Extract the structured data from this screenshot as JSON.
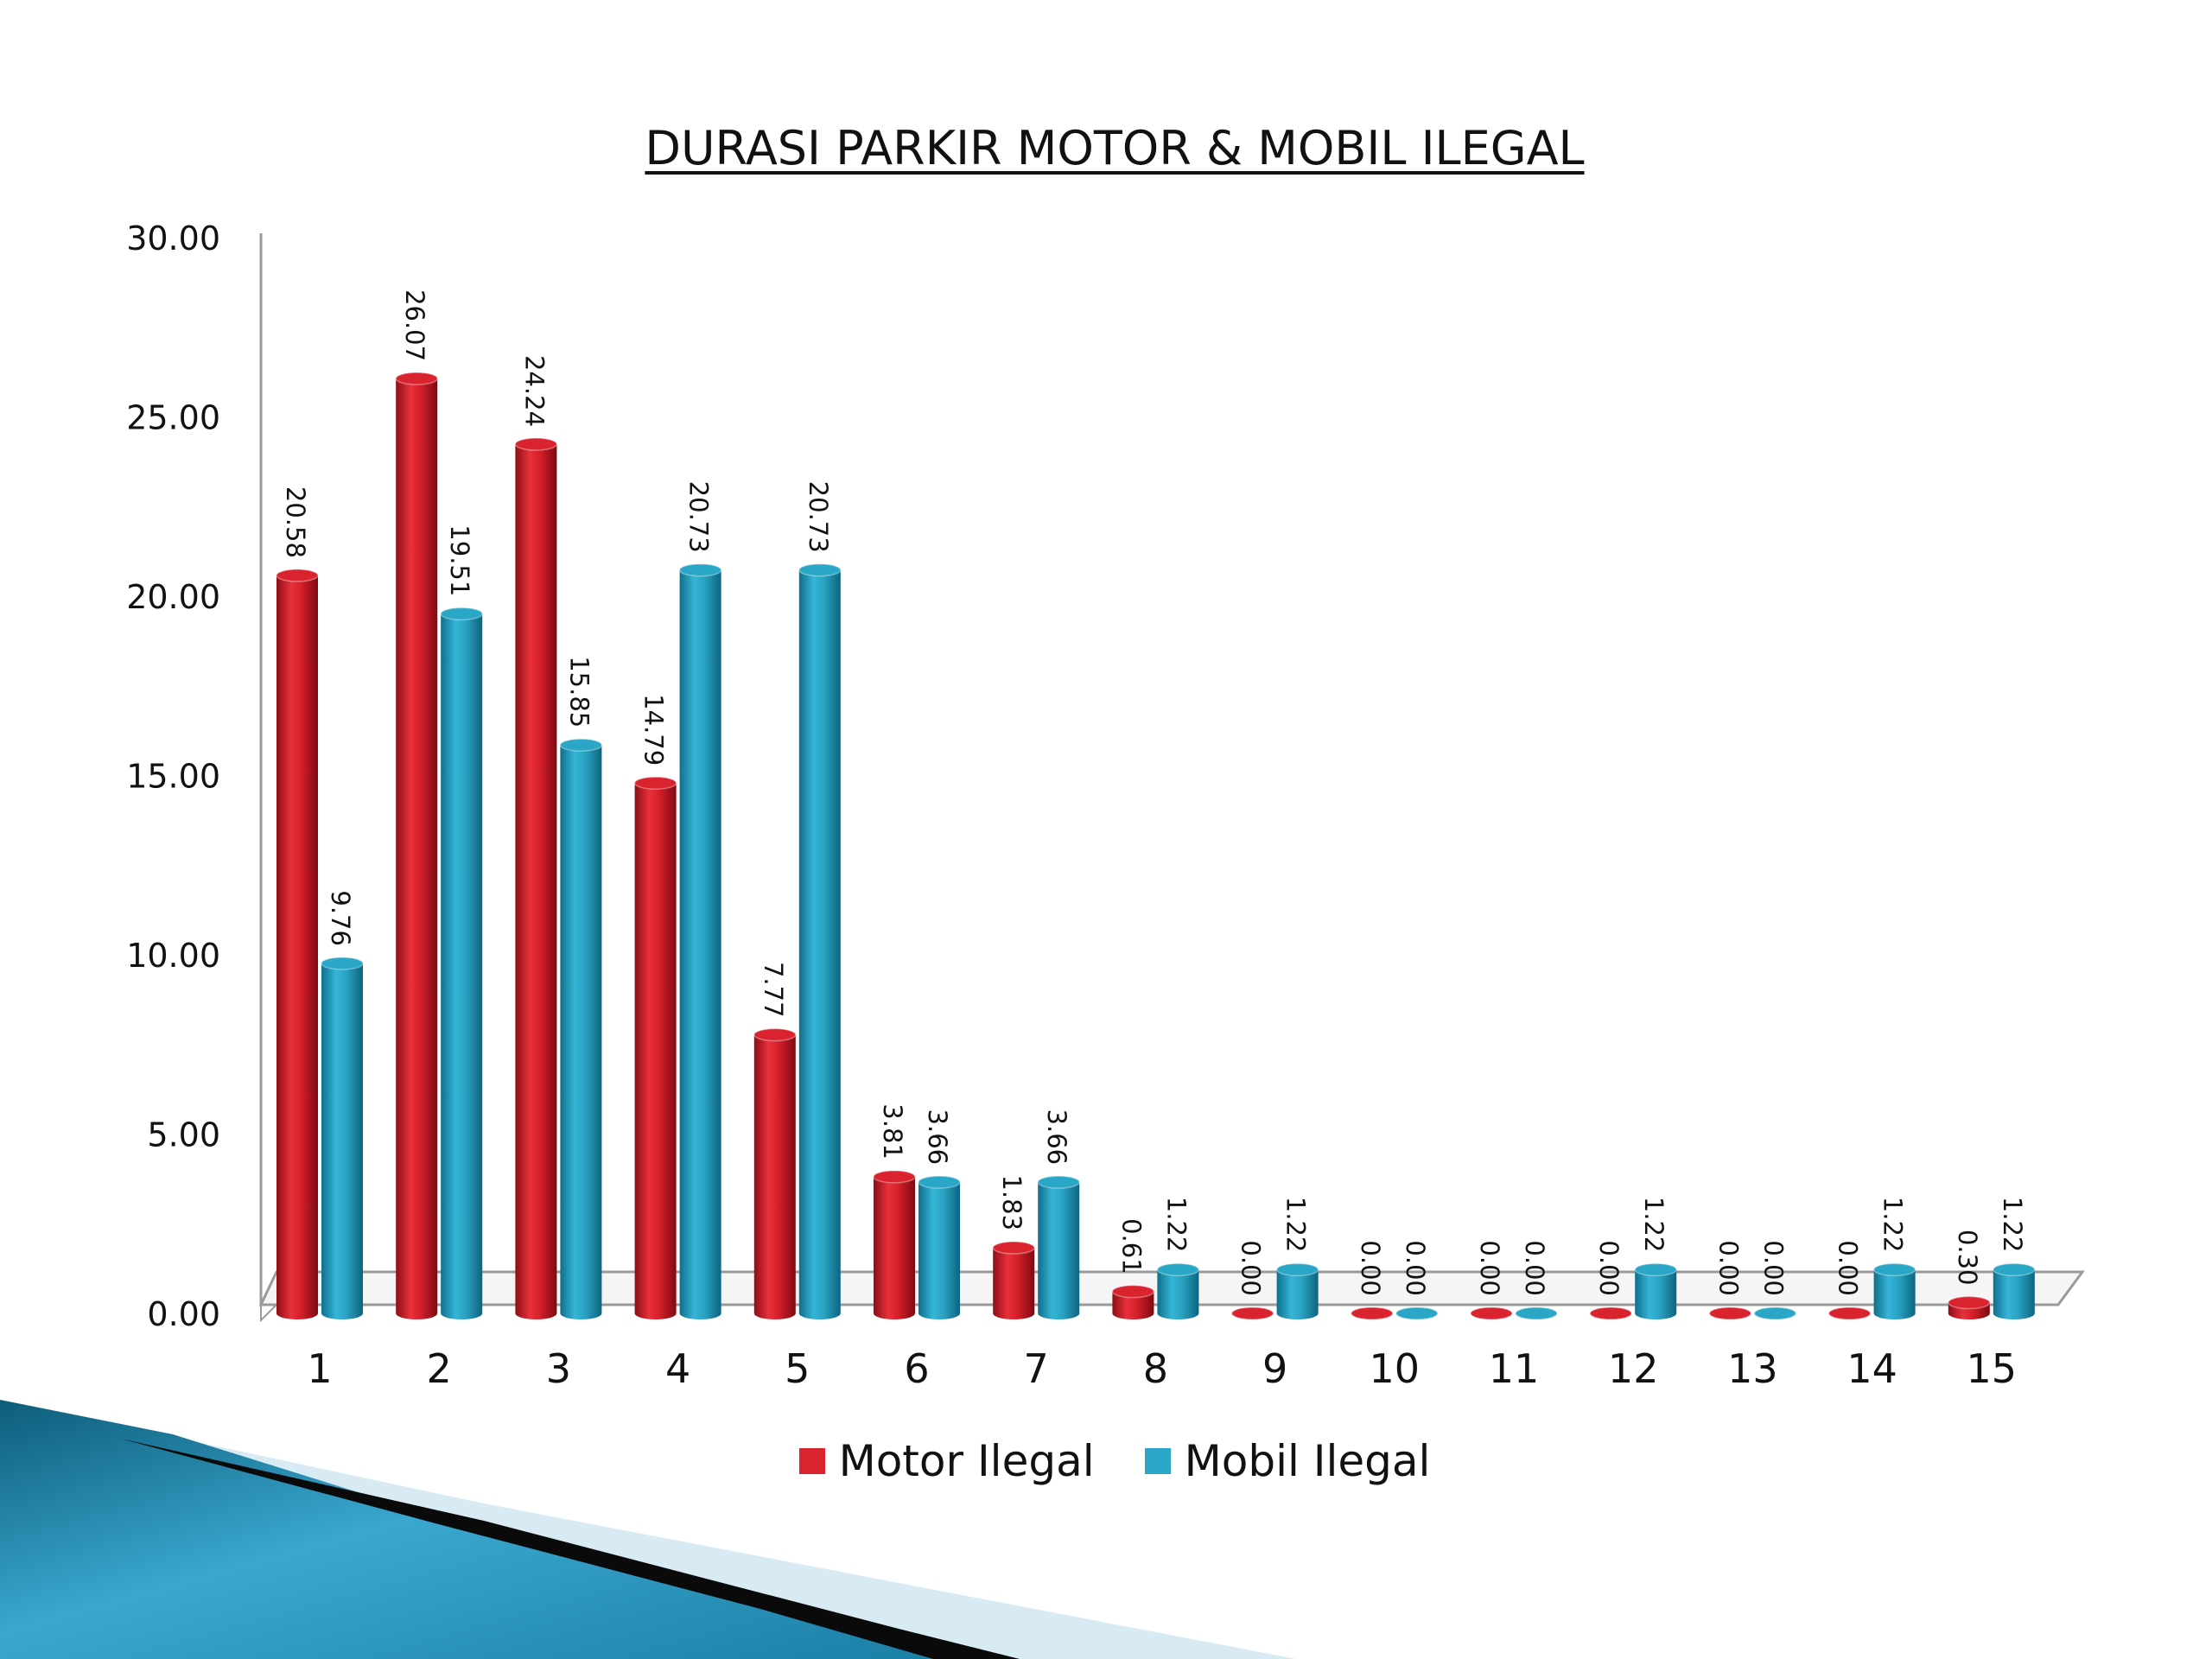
{
  "colors": {
    "motor": "#d9232e",
    "mobil": "#2aa6c6"
  },
  "chart_data": {
    "type": "bar",
    "title": "DURASI PARKIR MOTOR & MOBIL ILEGAL",
    "categories": [
      "1",
      "2",
      "3",
      "4",
      "5",
      "6",
      "7",
      "8",
      "9",
      "10",
      "11",
      "12",
      "13",
      "14",
      "15"
    ],
    "series": [
      {
        "name": "Motor Ilegal",
        "values": [
          20.58,
          26.07,
          24.24,
          14.79,
          7.77,
          3.81,
          1.83,
          0.61,
          0.0,
          0.0,
          0.0,
          0.0,
          0.0,
          0.0,
          0.3
        ],
        "labels": [
          "20.58",
          "26.07",
          "24.24",
          "14.79",
          "7.77",
          "3.81",
          "1.83",
          "0.61",
          "0.00",
          "0.00",
          "0.00",
          "0.00",
          "0.00",
          "0.00",
          "0.30"
        ]
      },
      {
        "name": "Mobil Ilegal",
        "values": [
          9.76,
          19.51,
          15.85,
          20.73,
          20.73,
          3.66,
          3.66,
          1.22,
          1.22,
          0.0,
          0.0,
          1.22,
          0.0,
          1.22,
          1.22
        ],
        "labels": [
          "9.76",
          "19.51",
          "15.85",
          "20.73",
          "20.73",
          "3.66",
          "3.66",
          "1.22",
          "1.22",
          "0.00",
          "0.00",
          "1.22",
          "0.00",
          "1.22",
          "1.22"
        ]
      }
    ],
    "ylim": [
      0,
      30
    ],
    "yticks": [
      "0.00",
      "5.00",
      "10.00",
      "15.00",
      "20.00",
      "25.00",
      "30.00"
    ],
    "legend_position": "bottom",
    "grid": false
  }
}
